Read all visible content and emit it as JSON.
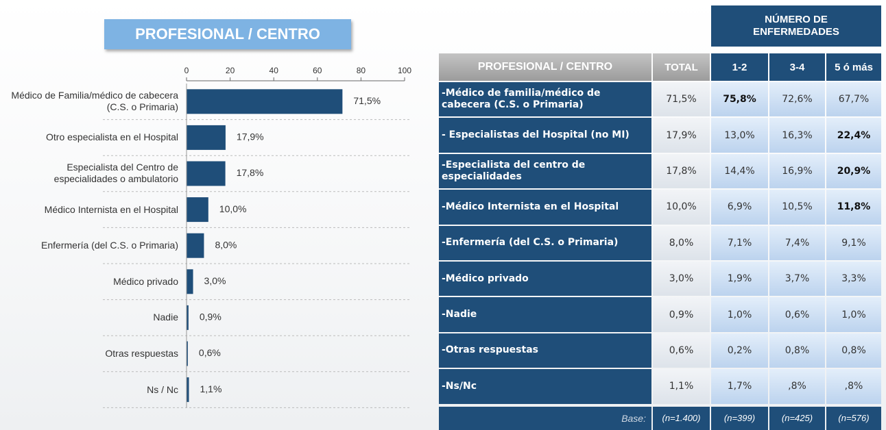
{
  "chart_data": {
    "type": "hbar",
    "title": "PROFESIONAL / CENTRO",
    "categories": [
      "Médico de Familia/médico de cabecera (C.S. o Primaria)",
      "Otro especialista en el Hospital",
      "Especialista del Centro de especialidades o ambulatorio",
      "Médico Internista en el Hospital",
      "Enfermería (del C.S. o Primaria)",
      "Médico privado",
      "Nadie",
      "Otras respuestas",
      "Ns / Nc"
    ],
    "values": [
      71.5,
      17.9,
      17.8,
      10.0,
      8.0,
      3.0,
      0.9,
      0.6,
      1.1
    ],
    "value_labels": [
      "71,5%",
      "17,9%",
      "17,8%",
      "10,0%",
      "8,0%",
      "3,0%",
      "0,9%",
      "0,6%",
      "1,1%"
    ],
    "color": "#1f4e79",
    "xlim": [
      0,
      100
    ],
    "xticks": [
      0,
      20,
      40,
      60,
      80,
      100
    ]
  },
  "table": {
    "group_header": "NÚMERO DE ENFERMEDADES",
    "columns": [
      "PROFESIONAL / CENTRO",
      "TOTAL",
      "1-2",
      "3-4",
      "5 ó más"
    ],
    "rows": [
      {
        "label": "-Médico de familia/médico de cabecera (C.S. o Primaria)",
        "cells": [
          "71,5%",
          "75,8%",
          "72,6%",
          "67,7%"
        ],
        "bold": 1
      },
      {
        "label": "- Especialistas del Hospital (no MI)",
        "cells": [
          "17,9%",
          "13,0%",
          "16,3%",
          "22,4%"
        ],
        "bold": 3
      },
      {
        "label": "-Especialista del centro de especialidades",
        "cells": [
          "17,8%",
          "14,4%",
          "16,9%",
          "20,9%"
        ],
        "bold": 3
      },
      {
        "label": "-Médico Internista en el Hospital",
        "cells": [
          "10,0%",
          "6,9%",
          "10,5%",
          "11,8%"
        ],
        "bold": 3
      },
      {
        "label": "-Enfermería (del C.S. o Primaria)",
        "cells": [
          "8,0%",
          "7,1%",
          "7,4%",
          "9,1%"
        ],
        "bold": null
      },
      {
        "label": "-Médico privado",
        "cells": [
          "3,0%",
          "1,9%",
          "3,7%",
          "3,3%"
        ],
        "bold": null
      },
      {
        "label": "-Nadie",
        "cells": [
          "0,9%",
          "1,0%",
          "0,6%",
          "1,0%"
        ],
        "bold": null
      },
      {
        "label": "-Otras respuestas",
        "cells": [
          "0,6%",
          "0,2%",
          "0,8%",
          "0,8%"
        ],
        "bold": null
      },
      {
        "label": "-Ns/Nc",
        "cells": [
          "1,1%",
          "1,7%",
          ",8%",
          ",8%"
        ],
        "bold": null
      }
    ],
    "base": {
      "label": "Base:",
      "cells": [
        "(n=1.400)",
        "(n=399)",
        "(n=425)",
        "(n=576)"
      ]
    }
  }
}
